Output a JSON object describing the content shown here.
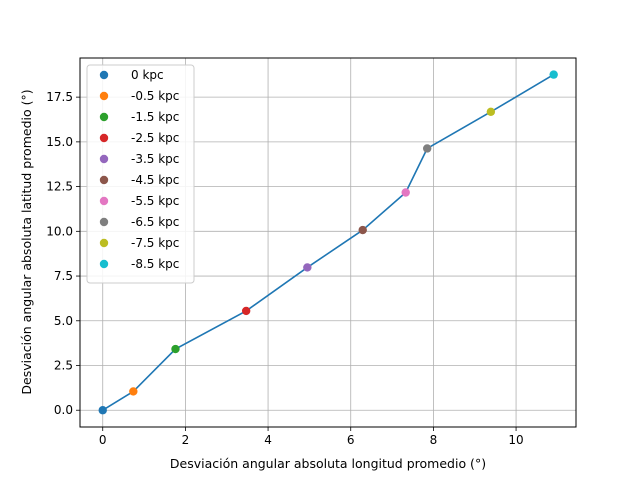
{
  "chart_data": {
    "type": "scatter",
    "title": "",
    "xlabel": "Desviación angular absoluta longitud promedio (°)",
    "ylabel": "Desviación angular absoluta latitud promedio (°)",
    "xlim": [
      -0.55,
      11.45
    ],
    "ylim": [
      -0.9375,
      19.6875
    ],
    "xticks": [
      0,
      2,
      4,
      6,
      8,
      10
    ],
    "xtick_labels": [
      "0",
      "2",
      "4",
      "6",
      "8",
      "10"
    ],
    "yticks": [
      0,
      2.5,
      5,
      7.5,
      10,
      12.5,
      15,
      17.5
    ],
    "ytick_labels": [
      "0.0",
      "2.5",
      "5.0",
      "7.5",
      "10.0",
      "12.5",
      "15.0",
      "17.5"
    ],
    "grid": true,
    "legend_position": "top-left",
    "line_color": "#1f77b4",
    "points": [
      {
        "label": "0 kpc",
        "x": 0.0,
        "y": 0.0,
        "color": "#1f77b4"
      },
      {
        "label": "-0.5 kpc",
        "x": 0.74,
        "y": 1.05,
        "color": "#ff7f0e"
      },
      {
        "label": "-1.5 kpc",
        "x": 1.76,
        "y": 3.42,
        "color": "#2ca02c"
      },
      {
        "label": "-2.5 kpc",
        "x": 3.47,
        "y": 5.55,
        "color": "#d62728"
      },
      {
        "label": "-3.5 kpc",
        "x": 4.95,
        "y": 7.98,
        "color": "#9467bd"
      },
      {
        "label": "-4.5 kpc",
        "x": 6.29,
        "y": 10.07,
        "color": "#8c564b"
      },
      {
        "label": "-5.5 kpc",
        "x": 7.33,
        "y": 12.17,
        "color": "#e377c2"
      },
      {
        "label": "-6.5 kpc",
        "x": 7.85,
        "y": 14.63,
        "color": "#7f7f7f"
      },
      {
        "label": "-7.5 kpc",
        "x": 9.39,
        "y": 16.68,
        "color": "#bcbd22"
      },
      {
        "label": "-8.5 kpc",
        "x": 10.91,
        "y": 18.76,
        "color": "#17becf"
      }
    ]
  }
}
